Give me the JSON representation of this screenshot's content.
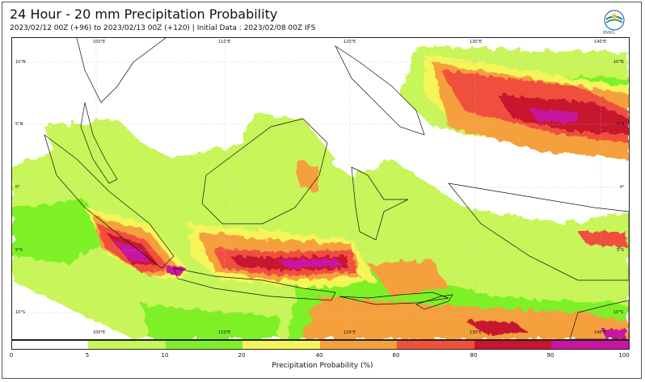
{
  "header": {
    "title": "24 Hour - 20 mm Precipitation Probability",
    "subtitle": "2023/02/12 00Z (+96) to 2023/02/13 00Z (+120) | Initial Data : 2023/02/08 00Z IFS",
    "logo_text": "BMKG"
  },
  "map": {
    "lon_labels": [
      "100°E",
      "110°E",
      "120°E",
      "130°E",
      "140°E"
    ],
    "lat_labels": [
      "10°N",
      "5°N",
      "0°",
      "5°S",
      "10°S"
    ],
    "background_color": "#ffffff"
  },
  "colorbar": {
    "title": "Precipitation Probability (%)",
    "ticks": [
      "0",
      "5",
      "10",
      "20",
      "40",
      "60",
      "80",
      "90",
      "100"
    ],
    "colors": [
      "#ffffff",
      "#c8f55a",
      "#7ef028",
      "#f5f55a",
      "#f5a03c",
      "#f0503c",
      "#c8142d",
      "#c814a0"
    ]
  }
}
